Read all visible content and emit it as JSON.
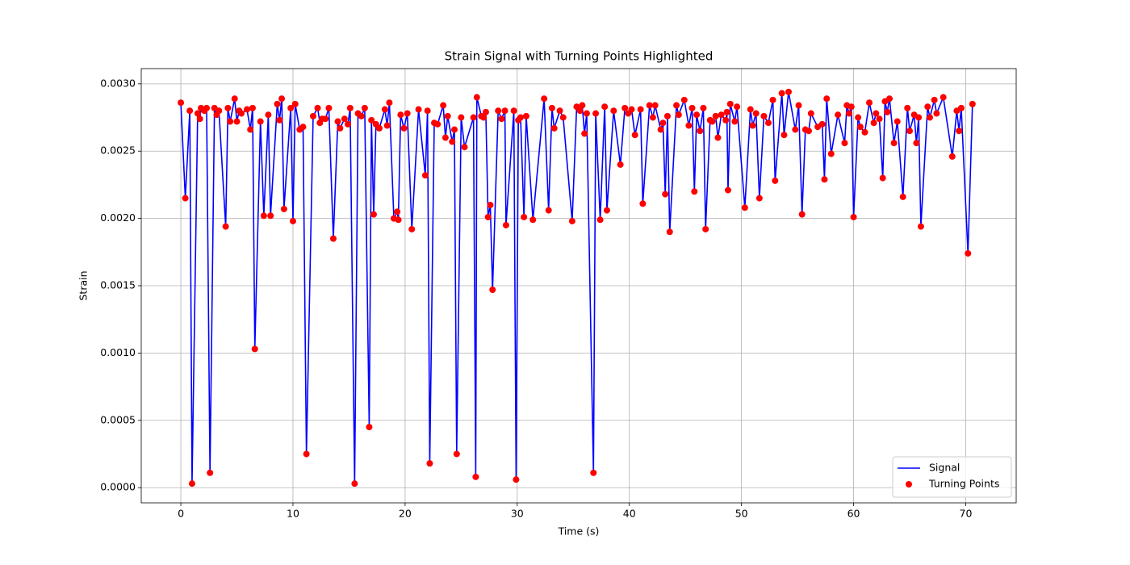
{
  "chart_data": {
    "type": "line",
    "title": "Strain Signal with Turning Points Highlighted",
    "x_label": "Time (s)",
    "y_label": "Strain",
    "xlim": [
      -3.53,
      74.5
    ],
    "ylim": [
      -0.000113,
      0.003113
    ],
    "xticks": [
      0,
      10,
      20,
      30,
      40,
      50,
      60,
      70
    ],
    "yticks": [
      {
        "value": 0,
        "label": "0.0000"
      },
      {
        "value": 0.0005,
        "label": "0.0005"
      },
      {
        "value": 0.001,
        "label": "0.0010"
      },
      {
        "value": 0.0015,
        "label": "0.0015"
      },
      {
        "value": 0.002,
        "label": "0.0020"
      },
      {
        "value": 0.0025,
        "label": "0.0025"
      },
      {
        "value": 0.003,
        "label": "0.0030"
      }
    ],
    "grid": true,
    "legend": "lower right",
    "x": [
      0,
      0.4,
      0.8,
      1.0,
      1.5,
      1.7,
      1.8,
      2.1,
      2.3,
      2.6,
      3.0,
      3.2,
      3.4,
      4.0,
      4.2,
      4.4,
      4.8,
      5.0,
      5.2,
      5.4,
      5.9,
      6.2,
      6.4,
      6.6,
      7.1,
      7.4,
      7.8,
      8.0,
      8.6,
      8.8,
      9.0,
      9.2,
      9.8,
      10.0,
      10.2,
      10.6,
      10.9,
      11.2,
      11.8,
      12.2,
      12.4,
      12.6,
      12.9,
      13.2,
      13.6,
      14.0,
      14.2,
      14.6,
      14.9,
      15.1,
      15.5,
      15.8,
      16.1,
      16.4,
      16.8,
      17.0,
      17.2,
      17.4,
      17.7,
      18.2,
      18.4,
      18.6,
      19.0,
      19.3,
      19.4,
      19.6,
      19.9,
      20.2,
      20.6,
      21.2,
      21.8,
      22.0,
      22.2,
      22.6,
      22.9,
      23.4,
      23.6,
      23.8,
      24.2,
      24.4,
      24.6,
      25.0,
      25.3,
      26.1,
      26.3,
      26.4,
      26.8,
      27.0,
      27.2,
      27.4,
      27.6,
      27.8,
      28.3,
      28.6,
      28.9,
      29.0,
      29.7,
      29.9,
      30.1,
      30.3,
      30.6,
      30.8,
      31.4,
      32.4,
      32.8,
      33.1,
      33.3,
      33.8,
      34.1,
      34.9,
      35.3,
      35.6,
      35.8,
      36.0,
      36.2,
      36.8,
      37.0,
      37.4,
      37.8,
      38.0,
      38.6,
      39.2,
      39.6,
      39.9,
      40.2,
      40.5,
      41.0,
      41.2,
      41.8,
      42.1,
      42.3,
      42.8,
      43.0,
      43.2,
      43.4,
      43.6,
      44.2,
      44.4,
      44.9,
      45.3,
      45.6,
      45.8,
      46.0,
      46.3,
      46.6,
      46.8,
      47.2,
      47.4,
      47.7,
      47.9,
      48.2,
      48.6,
      48.7,
      48.8,
      49.0,
      49.4,
      49.6,
      50.3,
      50.8,
      51.0,
      51.3,
      51.6,
      52.0,
      52.4,
      52.8,
      53.0,
      53.6,
      53.8,
      54.2,
      54.8,
      55.1,
      55.4,
      55.7,
      56.0,
      56.2,
      56.8,
      57.2,
      57.4,
      57.6,
      58.0,
      58.6,
      59.2,
      59.4,
      59.6,
      59.8,
      60.0,
      60.4,
      60.6,
      61.0,
      61.4,
      61.8,
      62.0,
      62.3,
      62.6,
      62.8,
      63.0,
      63.2,
      63.6,
      63.9,
      64.4,
      64.8,
      65.0,
      65.4,
      65.6,
      65.8,
      66.0,
      66.6,
      66.8,
      67.2,
      67.4,
      68.0,
      68.8,
      69.2,
      69.4,
      69.6,
      70.2,
      70.6
    ],
    "series": [
      {
        "name": "Signal",
        "type": "line",
        "color": "#0000ff",
        "values": [
          0.00286,
          0.00215,
          0.0028,
          3e-05,
          0.00278,
          0.00274,
          0.00282,
          0.0028,
          0.00282,
          0.00011,
          0.00282,
          0.00277,
          0.0028,
          0.00194,
          0.00282,
          0.00272,
          0.00289,
          0.00272,
          0.0028,
          0.00278,
          0.00281,
          0.00266,
          0.00282,
          0.00103,
          0.00272,
          0.00202,
          0.00277,
          0.00202,
          0.00285,
          0.00273,
          0.00289,
          0.00207,
          0.00282,
          0.00198,
          0.00285,
          0.00266,
          0.00268,
          0.00025,
          0.00276,
          0.00282,
          0.00271,
          0.00274,
          0.00274,
          0.00282,
          0.00185,
          0.00272,
          0.00267,
          0.00274,
          0.0027,
          0.00282,
          3e-05,
          0.00278,
          0.00276,
          0.00282,
          0.00045,
          0.00273,
          0.00203,
          0.0027,
          0.00267,
          0.00281,
          0.00269,
          0.00286,
          0.002,
          0.00205,
          0.00199,
          0.00277,
          0.00267,
          0.00278,
          0.00192,
          0.00281,
          0.00232,
          0.0028,
          0.00018,
          0.00271,
          0.0027,
          0.00284,
          0.0026,
          0.00276,
          0.00257,
          0.00266,
          0.00025,
          0.00275,
          0.00253,
          0.00275,
          8e-05,
          0.0029,
          0.00276,
          0.00275,
          0.00279,
          0.00201,
          0.0021,
          0.00147,
          0.0028,
          0.00274,
          0.0028,
          0.00195,
          0.0028,
          6e-05,
          0.00273,
          0.00275,
          0.00201,
          0.00276,
          0.00199,
          0.00289,
          0.00206,
          0.00282,
          0.00267,
          0.0028,
          0.00275,
          0.00198,
          0.00283,
          0.0028,
          0.00284,
          0.00263,
          0.00278,
          0.00011,
          0.00278,
          0.00199,
          0.00283,
          0.00206,
          0.0028,
          0.0024,
          0.00282,
          0.00278,
          0.00281,
          0.00262,
          0.00281,
          0.00211,
          0.00284,
          0.00275,
          0.00284,
          0.00266,
          0.00271,
          0.00218,
          0.00276,
          0.0019,
          0.00284,
          0.00277,
          0.00288,
          0.00269,
          0.00282,
          0.0022,
          0.00277,
          0.00265,
          0.00282,
          0.00192,
          0.00273,
          0.00272,
          0.00276,
          0.0026,
          0.00277,
          0.00273,
          0.00279,
          0.00221,
          0.00285,
          0.00272,
          0.00283,
          0.00208,
          0.00281,
          0.00269,
          0.00278,
          0.00215,
          0.00276,
          0.00271,
          0.00288,
          0.00228,
          0.00293,
          0.00262,
          0.00294,
          0.00266,
          0.00284,
          0.00203,
          0.00266,
          0.00265,
          0.00278,
          0.00268,
          0.0027,
          0.00229,
          0.00289,
          0.00248,
          0.00277,
          0.00256,
          0.00284,
          0.00278,
          0.00283,
          0.00201,
          0.00275,
          0.00268,
          0.00264,
          0.00286,
          0.00271,
          0.00278,
          0.00274,
          0.0023,
          0.00287,
          0.00279,
          0.00289,
          0.00256,
          0.00272,
          0.00216,
          0.00282,
          0.00265,
          0.00277,
          0.00256,
          0.00275,
          0.00194,
          0.00283,
          0.00275,
          0.00288,
          0.00278,
          0.0029,
          0.00246,
          0.0028,
          0.00265,
          0.00282,
          0.00174,
          0.00285
        ]
      },
      {
        "name": "Turning Points",
        "type": "scatter",
        "color": "#ff0000",
        "values": [
          0.00286,
          0.00215,
          0.0028,
          3e-05,
          0.00278,
          0.00274,
          0.00282,
          0.0028,
          0.00282,
          0.00011,
          0.00282,
          0.00277,
          0.0028,
          0.00194,
          0.00282,
          0.00272,
          0.00289,
          0.00272,
          0.0028,
          0.00278,
          0.00281,
          0.00266,
          0.00282,
          0.00103,
          0.00272,
          0.00202,
          0.00277,
          0.00202,
          0.00285,
          0.00273,
          0.00289,
          0.00207,
          0.00282,
          0.00198,
          0.00285,
          0.00266,
          0.00268,
          0.00025,
          0.00276,
          0.00282,
          0.00271,
          0.00274,
          0.00274,
          0.00282,
          0.00185,
          0.00272,
          0.00267,
          0.00274,
          0.0027,
          0.00282,
          3e-05,
          0.00278,
          0.00276,
          0.00282,
          0.00045,
          0.00273,
          0.00203,
          0.0027,
          0.00267,
          0.00281,
          0.00269,
          0.00286,
          0.002,
          0.00205,
          0.00199,
          0.00277,
          0.00267,
          0.00278,
          0.00192,
          0.00281,
          0.00232,
          0.0028,
          0.00018,
          0.00271,
          0.0027,
          0.00284,
          0.0026,
          0.00276,
          0.00257,
          0.00266,
          0.00025,
          0.00275,
          0.00253,
          0.00275,
          8e-05,
          0.0029,
          0.00276,
          0.00275,
          0.00279,
          0.00201,
          0.0021,
          0.00147,
          0.0028,
          0.00274,
          0.0028,
          0.00195,
          0.0028,
          6e-05,
          0.00273,
          0.00275,
          0.00201,
          0.00276,
          0.00199,
          0.00289,
          0.00206,
          0.00282,
          0.00267,
          0.0028,
          0.00275,
          0.00198,
          0.00283,
          0.0028,
          0.00284,
          0.00263,
          0.00278,
          0.00011,
          0.00278,
          0.00199,
          0.00283,
          0.00206,
          0.0028,
          0.0024,
          0.00282,
          0.00278,
          0.00281,
          0.00262,
          0.00281,
          0.00211,
          0.00284,
          0.00275,
          0.00284,
          0.00266,
          0.00271,
          0.00218,
          0.00276,
          0.0019,
          0.00284,
          0.00277,
          0.00288,
          0.00269,
          0.00282,
          0.0022,
          0.00277,
          0.00265,
          0.00282,
          0.00192,
          0.00273,
          0.00272,
          0.00276,
          0.0026,
          0.00277,
          0.00273,
          0.00279,
          0.00221,
          0.00285,
          0.00272,
          0.00283,
          0.00208,
          0.00281,
          0.00269,
          0.00278,
          0.00215,
          0.00276,
          0.00271,
          0.00288,
          0.00228,
          0.00293,
          0.00262,
          0.00294,
          0.00266,
          0.00284,
          0.00203,
          0.00266,
          0.00265,
          0.00278,
          0.00268,
          0.0027,
          0.00229,
          0.00289,
          0.00248,
          0.00277,
          0.00256,
          0.00284,
          0.00278,
          0.00283,
          0.00201,
          0.00275,
          0.00268,
          0.00264,
          0.00286,
          0.00271,
          0.00278,
          0.00274,
          0.0023,
          0.00287,
          0.00279,
          0.00289,
          0.00256,
          0.00272,
          0.00216,
          0.00282,
          0.00265,
          0.00277,
          0.00256,
          0.00275,
          0.00194,
          0.00283,
          0.00275,
          0.00288,
          0.00278,
          0.0029,
          0.00246,
          0.0028,
          0.00265,
          0.00282,
          0.00174,
          0.00285
        ]
      }
    ]
  }
}
